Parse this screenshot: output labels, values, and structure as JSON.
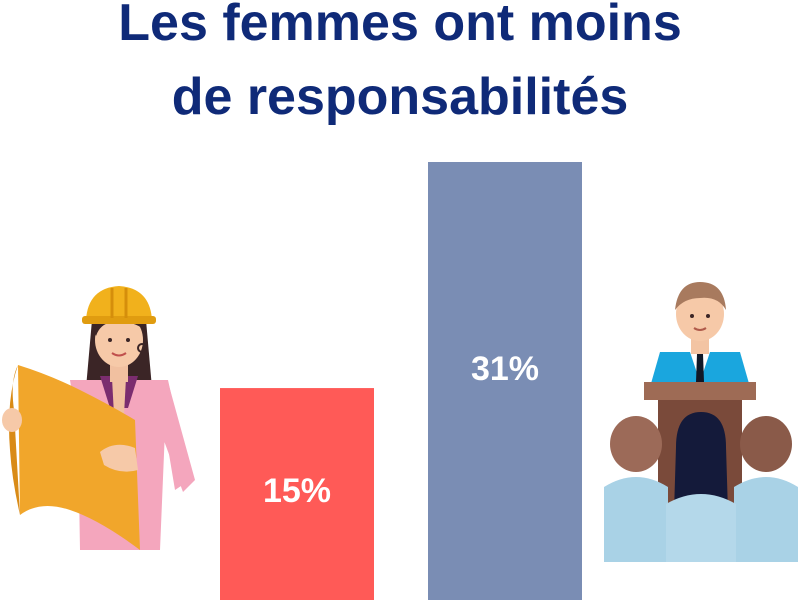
{
  "title": {
    "line1": "Les femmes ont moins",
    "line2": "de responsabilités"
  },
  "colors": {
    "title": "#0f2a78",
    "bar_women": "#ff5a57",
    "bar_men": "#7a8db4"
  },
  "icons": {
    "left": "woman-engineer-holding-blueprint-icon",
    "right": "man-speaking-at-podium-to-audience-icon"
  },
  "chart_data": {
    "type": "bar",
    "values": [
      15,
      31
    ],
    "labels": [
      "15%",
      "31%"
    ],
    "ylim": [
      0,
      31
    ],
    "grid": false,
    "legend": "none"
  }
}
